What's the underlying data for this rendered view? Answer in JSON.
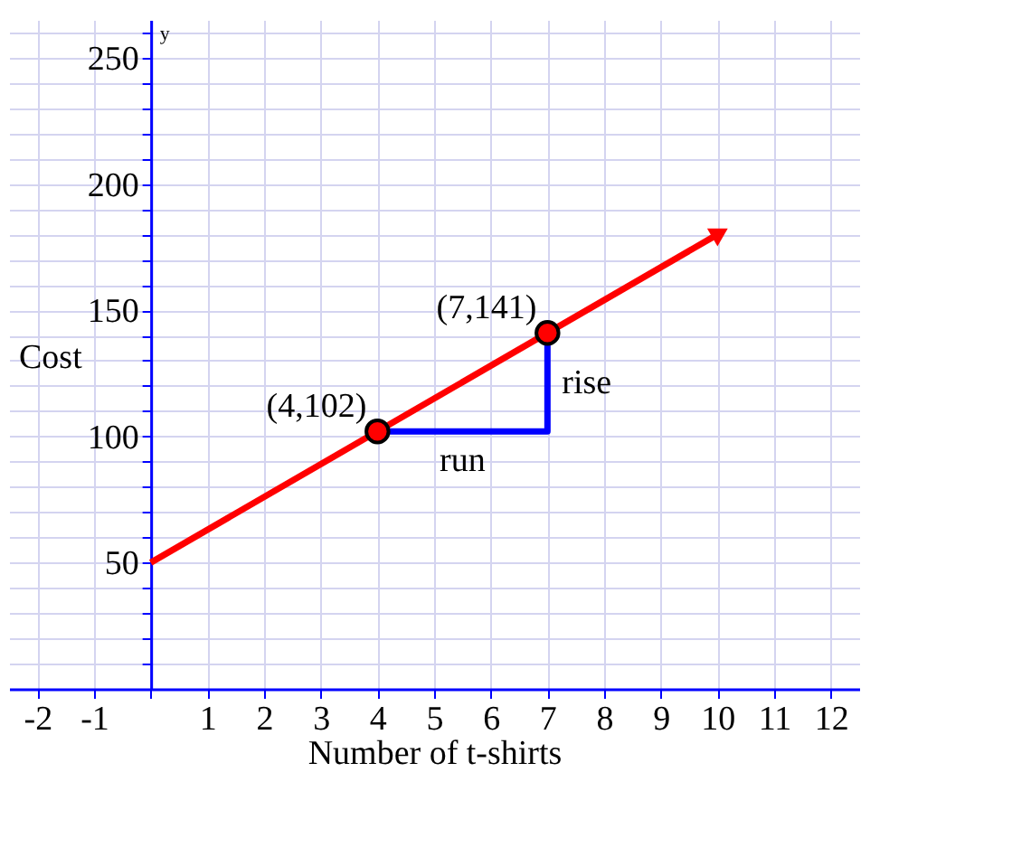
{
  "chart_data": {
    "type": "line",
    "xlabel": "Number of t-shirts",
    "ylabel": "Cost",
    "xlim": [
      -2.5,
      12.5
    ],
    "ylim": [
      0,
      265
    ],
    "xticks": [
      -2,
      -1,
      {
        "value": 0,
        "label": null
      },
      1,
      2,
      3,
      4,
      5,
      6,
      7,
      8,
      9,
      10,
      11,
      12
    ],
    "yticks": [
      {
        "value": 10,
        "label": null
      },
      {
        "value": 20,
        "label": null
      },
      {
        "value": 30,
        "label": null
      },
      {
        "value": 40,
        "label": null
      },
      50,
      {
        "value": 60,
        "label": null
      },
      {
        "value": 70,
        "label": null
      },
      {
        "value": 80,
        "label": null
      },
      {
        "value": 90,
        "label": null
      },
      100,
      {
        "value": 110,
        "label": null
      },
      {
        "value": 120,
        "label": null
      },
      {
        "value": 130,
        "label": null
      },
      {
        "value": 140,
        "label": null
      },
      150,
      {
        "value": 160,
        "label": null
      },
      {
        "value": 170,
        "label": null
      },
      {
        "value": 180,
        "label": null
      },
      {
        "value": 190,
        "label": null
      },
      200,
      {
        "value": 210,
        "label": null
      },
      {
        "value": 220,
        "label": null
      },
      {
        "value": 230,
        "label": null
      },
      {
        "value": 240,
        "label": null
      },
      250,
      {
        "value": 260,
        "label": null
      }
    ],
    "grid": true,
    "series": [
      {
        "color": "#ff0000",
        "x": [
          0,
          10
        ],
        "values": [
          50,
          180
        ]
      },
      {
        "color": "#0000ff",
        "x": [
          4,
          7,
          7
        ],
        "values": [
          102,
          102,
          141
        ]
      },
      {
        "type": "scatter",
        "color": "#ff0000",
        "x": [
          4,
          7
        ],
        "values": [
          102,
          141
        ],
        "marker": "circle"
      }
    ],
    "annotations": [
      {
        "text": "(4,102)",
        "x": 4,
        "y": 102
      },
      {
        "text": "(7,141)",
        "x": 7,
        "y": 141
      },
      {
        "text": "rise",
        "x": 7,
        "y": 121.5
      },
      {
        "text": "run",
        "x": 5.5,
        "y": 102
      },
      "y"
    ]
  }
}
